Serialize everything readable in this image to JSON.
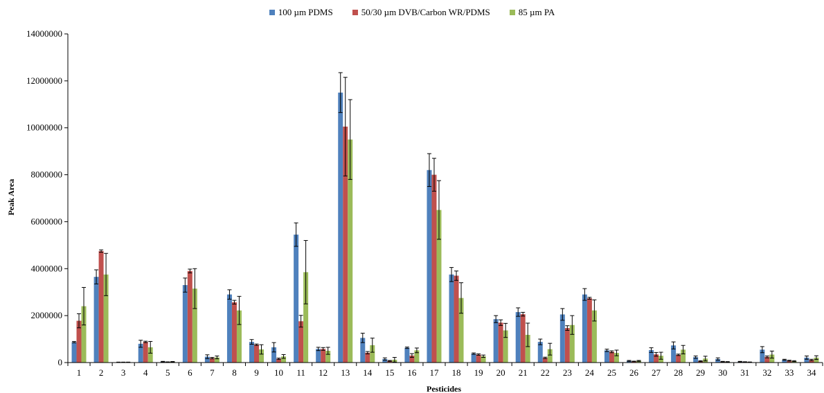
{
  "chart_data": {
    "type": "bar",
    "xlabel": "Pesticides",
    "ylabel": "Peak Area",
    "ylim": [
      0,
      14000000
    ],
    "yticks": [
      "0",
      "2000000",
      "4000000",
      "6000000",
      "8000000",
      "10000000",
      "12000000",
      "14000000"
    ],
    "ytick_values": [
      0,
      2000000,
      4000000,
      6000000,
      8000000,
      10000000,
      12000000,
      14000000
    ],
    "grid": false,
    "legend_position": "top-center",
    "categories": [
      "1",
      "2",
      "3",
      "4",
      "5",
      "6",
      "7",
      "8",
      "9",
      "10",
      "11",
      "12",
      "13",
      "14",
      "15",
      "16",
      "17",
      "18",
      "19",
      "20",
      "21",
      "22",
      "23",
      "24",
      "25",
      "26",
      "27",
      "28",
      "29",
      "30",
      "31",
      "32",
      "33",
      "34"
    ],
    "series": [
      {
        "name": "100 µm PDMS",
        "color": "#4F81BD",
        "values": [
          870000,
          3650000,
          15000,
          800000,
          40000,
          3300000,
          250000,
          2900000,
          880000,
          650000,
          5450000,
          580000,
          11500000,
          1050000,
          150000,
          630000,
          8200000,
          3750000,
          380000,
          1850000,
          2150000,
          880000,
          2050000,
          2900000,
          520000,
          70000,
          530000,
          730000,
          230000,
          150000,
          40000,
          550000,
          120000,
          210000
        ],
        "errors": [
          30000,
          300000,
          5000,
          150000,
          10000,
          300000,
          80000,
          200000,
          100000,
          200000,
          500000,
          70000,
          850000,
          200000,
          50000,
          30000,
          700000,
          300000,
          30000,
          150000,
          180000,
          120000,
          250000,
          250000,
          50000,
          20000,
          100000,
          150000,
          50000,
          50000,
          10000,
          130000,
          20000,
          70000
        ]
      },
      {
        "name": "50/30 µm DVB/Carbon  WR/PDMS",
        "color": "#C0504D",
        "values": [
          1780000,
          4750000,
          15000,
          880000,
          25000,
          3900000,
          190000,
          2570000,
          760000,
          160000,
          1760000,
          580000,
          10050000,
          420000,
          70000,
          300000,
          8000000,
          3700000,
          340000,
          1700000,
          2060000,
          200000,
          1470000,
          2740000,
          460000,
          50000,
          350000,
          330000,
          60000,
          40000,
          30000,
          240000,
          80000,
          110000
        ],
        "errors": [
          300000,
          50000,
          5000,
          30000,
          5000,
          80000,
          30000,
          80000,
          30000,
          30000,
          250000,
          60000,
          2100000,
          50000,
          20000,
          80000,
          700000,
          200000,
          30000,
          120000,
          80000,
          30000,
          100000,
          40000,
          40000,
          10000,
          80000,
          30000,
          20000,
          10000,
          5000,
          40000,
          20000,
          30000
        ]
      },
      {
        "name": "85 µm PA",
        "color": "#9BBB59",
        "values": [
          2400000,
          3750000,
          15000,
          650000,
          35000,
          3150000,
          220000,
          2220000,
          560000,
          260000,
          3850000,
          500000,
          9500000,
          740000,
          120000,
          520000,
          6500000,
          2750000,
          270000,
          1370000,
          1180000,
          570000,
          1600000,
          2220000,
          410000,
          70000,
          290000,
          550000,
          170000,
          30000,
          20000,
          340000,
          60000,
          210000
        ],
        "errors": [
          800000,
          900000,
          5000,
          250000,
          10000,
          850000,
          60000,
          600000,
          200000,
          80000,
          1350000,
          150000,
          1700000,
          300000,
          100000,
          100000,
          1250000,
          650000,
          50000,
          300000,
          500000,
          250000,
          400000,
          450000,
          120000,
          20000,
          150000,
          180000,
          100000,
          10000,
          5000,
          150000,
          20000,
          80000
        ]
      }
    ]
  }
}
